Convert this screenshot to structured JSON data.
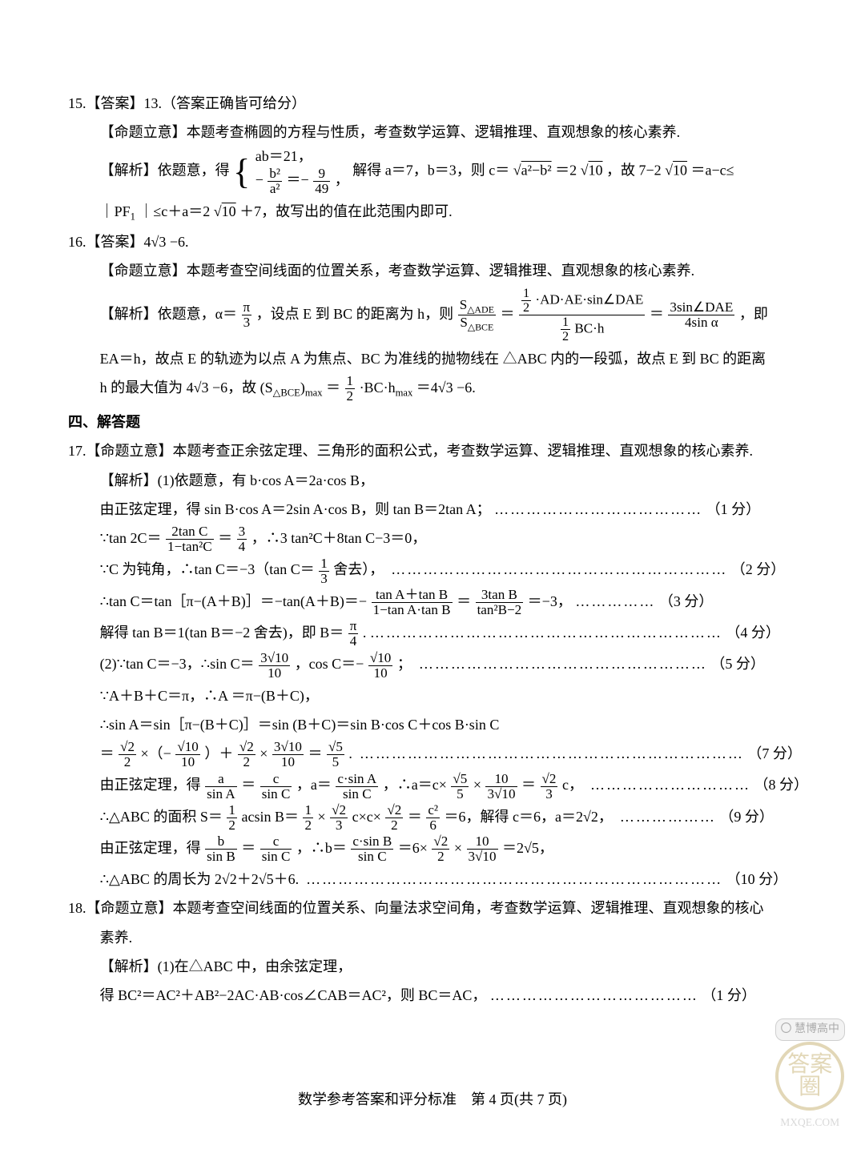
{
  "q15": {
    "head": "15.【答案】13.（答案正确皆可给分）",
    "intent": "【命题立意】本题考查椭圆的方程与性质，考查数学运算、逻辑推理、直观想象的核心素养.",
    "sol_lead": "【解析】依题意，得",
    "case1": "ab＝21，",
    "case2a": "−",
    "case2_num": "b²",
    "case2_den": "a²",
    "case2b": "＝−",
    "case2c_num": "9",
    "case2c_den": "49",
    "case2d": "，",
    "tail1a": "解得 a＝7，b＝3，则 c＝",
    "tail1b": "＝2",
    "sqrt_ab": "a²−b²",
    "sqrt10": "10",
    "tail1c": "，故 7−2",
    "tail1d": "＝a−c≤",
    "l2a": "｜PF",
    "l2b": "｜≤c＋a＝2",
    "l2c": "＋7，故写出的值在此范围内即可.",
    "sub1": "1"
  },
  "q16": {
    "head": "16.【答案】4√3 −6.",
    "intent": "【命题立意】本题考查空间线面的位置关系，考查数学运算、逻辑推理、直观想象的核心素养.",
    "l1a": "【解析】依题意，α＝",
    "l1_pi": "π",
    "l1_3": "3",
    "l1b": "，设点 E 到 BC 的距离为 h，则",
    "ratio_num": "S",
    "ratio_sub1": "△ADE",
    "ratio_den": "S",
    "ratio_sub2": "△BCE",
    "mid_num_a": "",
    "half_num": "1",
    "half_den": "2",
    "mid_num_b": "·AD·AE·sin∠DAE",
    "mid_den_a": "",
    "mid_den_b": "BC·h",
    "eq3_num": "3sin∠DAE",
    "eq3_den": "4sin α",
    "l1c": "，即",
    "l2": "EA＝h，故点 E 的轨迹为以点 A 为焦点、BC 为准线的抛物线在 △ABC 内的一段弧，故点 E 到 BC 的距离",
    "l3a": "h 的最大值为 4√3 −6，故 (S",
    "l3_sub": "△BCE",
    "l3b": ")",
    "l3_max": "max",
    "l3c": "＝",
    "l3d": "·BC·h",
    "l3e": "＝4√3 −6."
  },
  "sec4": "四、解答题",
  "q17": {
    "intent": "17.【命题立意】本题考查正余弦定理、三角形的面积公式，考查数学运算、逻辑推理、直观想象的核心素养.",
    "p1_l1": "【解析】(1)依题意，有 b·cos A＝2a·cos B，",
    "p1_l2a": "由正弦定理，得 sin B·cos A＝2sin A·cos B，则 tan B＝2tan A；",
    "dots1": "…………………………………",
    "score1": "（1 分）",
    "p1_l3a": "∵tan 2C＝",
    "f_2tanC": "2tan C",
    "f_den1": "1−tan²C",
    "p1_l3b": "＝",
    "f_3": "3",
    "f_4": "4",
    "p1_l3c": "，∴3 tan²C＋8tan C−3＝0，",
    "p1_l4a": "∵C 为钝角，∴tan C＝−3（tan C＝",
    "f_1": "1",
    "f_3b": "3",
    "p1_l4b": "舍去），",
    "dots2": "………………………………………………………",
    "score2": "（2 分）",
    "p1_l5a": "∴tan C＝tan［π−(A＋B)］＝−tan(A＋B)＝−",
    "f5_num": "tan A＋tan B",
    "f5_den": "1−tan A·tan B",
    "p1_l5b": "＝",
    "f6_num": "3tan B",
    "f6_den": "tan²B−2",
    "p1_l5c": "＝−3，",
    "dots3": "……………",
    "score3": "（3 分）",
    "p1_l6a": "解得 tan B＝1(tan B＝−2 舍去)，即 B＝",
    "f_pi": "π",
    "f_4b": "4",
    "p1_l6b": ".",
    "dots4": "…………………………………………………………",
    "score4": "（4 分）",
    "p2_l1a": "(2)∵tan C＝−3，∴sin C＝",
    "f7_num": "3√10",
    "f7_den": "10",
    "p2_l1b": "，cos C＝−",
    "f8_num": "√10",
    "f8_den": "10",
    "p2_l1c": "；",
    "dots5": "………………………………………………",
    "score5": "（5 分）",
    "p2_l2": "∵A＋B＋C＝π，∴A ＝π−(B＋C)，",
    "p2_l3": "∴sin A＝sin［π−(B＋C)］＝sin (B＋C)＝sin B·cos C＋cos B·sin C",
    "p2_l4a": "＝",
    "f9_num": "√2",
    "f9_den": "2",
    "p2_l4b": "×（−",
    "f10_num": "√10",
    "f10_den": "10",
    "p2_l4c": "）＋",
    "p2_l4d": "×",
    "p2_l4e": "＝",
    "f11_num": "√5",
    "f11_den": "5",
    "p2_l4f": ".",
    "dots7": "………………………………………………………………",
    "score7": "（7 分）",
    "p2_l5a": "由正弦定理，得",
    "f_a": "a",
    "f_sinA": "sin A",
    "f_c": "c",
    "f_sinC": "sin C",
    "p2_l5b": "，a＝",
    "f12_num": "c·sin A",
    "f12_den": "sin C",
    "p2_l5c": "，∴a＝c×",
    "p2_l5d": "×",
    "f13_num": "10",
    "f13_den": "3√10",
    "p2_l5e": "＝",
    "f14_num": "√2",
    "f14_den": "3",
    "p2_l5f": "c，",
    "dots8": "…………………………",
    "score8": "（8 分）",
    "p2_l6a": "∴△ABC 的面积 S＝",
    "p2_l6b": "acsin B＝",
    "p2_l6c": "×",
    "p2_l6d": "c×c×",
    "p2_l6e": "＝",
    "f15_num": "c²",
    "f15_den": "6",
    "p2_l6f": "＝6，解得 c＝6，a＝2√2，",
    "dots9": "………………",
    "score9": "（9 分）",
    "p2_l7a": "由正弦定理，得",
    "f_b": "b",
    "f_sinB": "sin B",
    "p2_l7b": "，∴b＝",
    "f16_num": "c·sin B",
    "f16_den": "sin C",
    "p2_l7c": "＝6×",
    "p2_l7d": "×",
    "p2_l7e": "＝2√5，",
    "p2_l8a": "∴△ABC 的周长为 2√2＋2√5＋6.",
    "dots10": "……………………………………………………………………",
    "score10": "（10 分）"
  },
  "q18": {
    "intent": "18.【命题立意】本题考查空间线面的位置关系、向量法求空间角，考查数学运算、逻辑推理、直观想象的核心",
    "intent2": "素养.",
    "l1": "【解析】(1)在△ABC 中，由余弦定理，",
    "l2a": "得 BC²＝AC²＋AB²−2AC·AB·cos∠CAB＝AC²，则 BC＝AC，",
    "dots1": "…………………………………",
    "score1": "（1 分）"
  },
  "footer": "数学参考答案和评分标准　第 4 页(共 7 页)",
  "wm": {
    "ring": "答案圈",
    "sub": "MXQE.COM",
    "pill": "慧博高中"
  }
}
